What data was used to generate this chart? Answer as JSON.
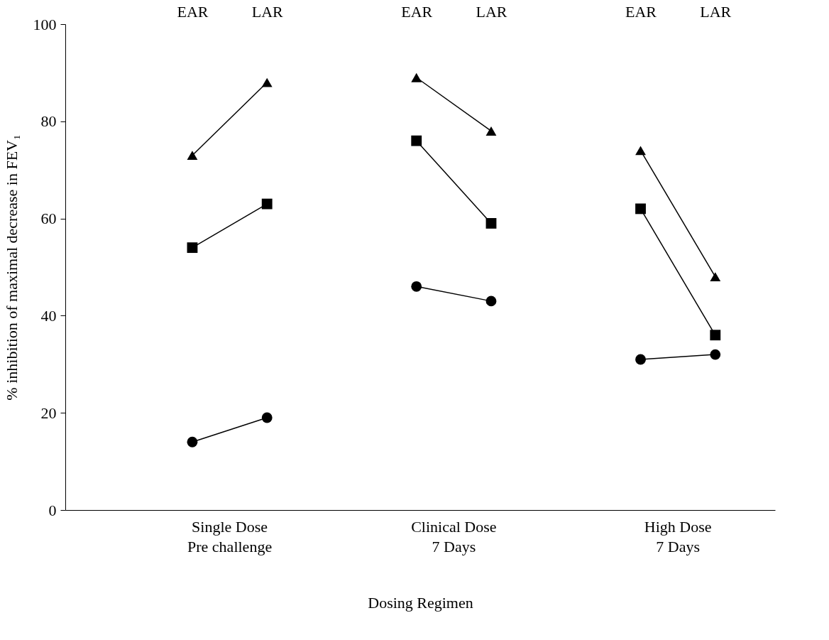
{
  "chart_data": {
    "type": "line",
    "ylabel": "% inhibition of maximal decrease in FEV₁",
    "xlabel": "Dosing Regimen",
    "categories": [
      "EAR",
      "LAR",
      null,
      "EAR",
      "LAR",
      null,
      "EAR",
      "LAR"
    ],
    "series": [
      {
        "color": "#000000",
        "marker": "triangle",
        "values": [
          73,
          88,
          null,
          89,
          78,
          null,
          74,
          48
        ]
      },
      {
        "color": "#000000",
        "marker": "square",
        "values": [
          54,
          63,
          null,
          76,
          59,
          null,
          62,
          36
        ]
      },
      {
        "color": "#000000",
        "marker": "circle",
        "values": [
          14,
          19,
          null,
          46,
          43,
          null,
          31,
          32
        ]
      }
    ],
    "ylim": [
      0,
      100
    ],
    "yticks": [
      0,
      20,
      40,
      60,
      80,
      100
    ],
    "annotations": [
      "Single Dose\nPre challenge",
      "Clinical Dose\n7 Days",
      "High Dose\n7 Days"
    ]
  }
}
